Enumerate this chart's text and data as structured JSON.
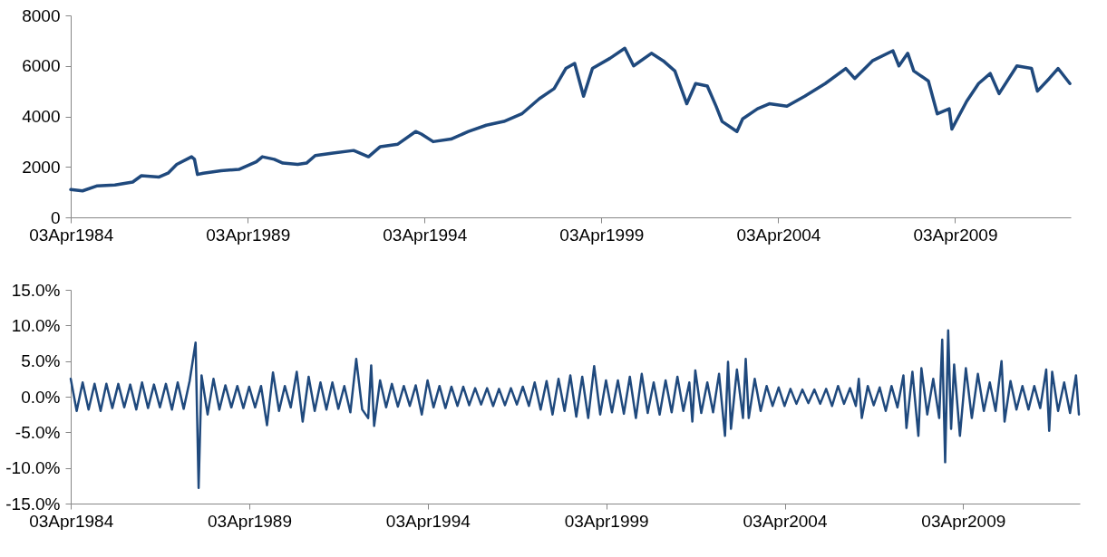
{
  "chart_data": [
    {
      "type": "line",
      "color": "#1f497d",
      "grid": false,
      "x": [
        "1984-04",
        "1984-08",
        "1985-01",
        "1985-07",
        "1986-01",
        "1986-04",
        "1986-10",
        "1987-01",
        "1987-04",
        "1987-09",
        "1987-10",
        "1987-11",
        "1988-01",
        "1988-07",
        "1989-01",
        "1989-07",
        "1989-09",
        "1990-01",
        "1990-04",
        "1990-09",
        "1990-12",
        "1991-03",
        "1991-09",
        "1992-04",
        "1992-09",
        "1993-01",
        "1993-07",
        "1994-01",
        "1994-03",
        "1994-07",
        "1995-01",
        "1995-07",
        "1996-01",
        "1996-07",
        "1997-01",
        "1997-07",
        "1997-12",
        "1998-04",
        "1998-07",
        "1998-10",
        "1999-01",
        "1999-07",
        "1999-12",
        "2000-03",
        "2000-09",
        "2001-01",
        "2001-05",
        "2001-09",
        "2001-12",
        "2002-04",
        "2002-07",
        "2002-09",
        "2003-02",
        "2003-04",
        "2003-09",
        "2004-01",
        "2004-07",
        "2005-01",
        "2005-08",
        "2006-03",
        "2006-06",
        "2006-12",
        "2007-07",
        "2007-09",
        "2007-12",
        "2008-02",
        "2008-07",
        "2008-10",
        "2009-02",
        "2009-03",
        "2009-08",
        "2009-12",
        "2010-04",
        "2010-07",
        "2011-01",
        "2011-06",
        "2011-08",
        "2011-12",
        "2012-03",
        "2012-07"
      ],
      "values": [
        1100,
        1050,
        1250,
        1280,
        1400,
        1650,
        1600,
        1750,
        2100,
        2400,
        2300,
        1700,
        1750,
        1850,
        1900,
        2200,
        2400,
        2300,
        2150,
        2100,
        2150,
        2450,
        2550,
        2650,
        2400,
        2800,
        2900,
        3400,
        3300,
        3000,
        3100,
        3400,
        3650,
        3800,
        4100,
        4700,
        5100,
        5900,
        6100,
        4800,
        5900,
        6300,
        6700,
        6000,
        6500,
        6200,
        5800,
        4500,
        5300,
        5200,
        4400,
        3800,
        3400,
        3900,
        4300,
        4500,
        4400,
        4800,
        5300,
        5900,
        5500,
        6200,
        6600,
        6000,
        6500,
        5800,
        5400,
        4100,
        4300,
        3500,
        4600,
        5300,
        5700,
        4900,
        6000,
        5900,
        5000,
        5500,
        5900,
        5300
      ],
      "xlim": [
        "1984-04-01",
        "2012-07-10"
      ],
      "xticks": [
        {
          "value": "1984-04-03",
          "label": "03Apr1984"
        },
        {
          "value": "1989-04-03",
          "label": "03Apr1989"
        },
        {
          "value": "1994-04-03",
          "label": "03Apr1994"
        },
        {
          "value": "1999-04-03",
          "label": "03Apr1999"
        },
        {
          "value": "2004-04-03",
          "label": "03Apr2004"
        },
        {
          "value": "2009-04-03",
          "label": "03Apr2009"
        }
      ],
      "ylim": [
        0,
        8000
      ],
      "yticks": [
        0,
        2000,
        4000,
        6000,
        8000
      ]
    },
    {
      "type": "line",
      "color": "#1f497d",
      "grid": false,
      "x": [
        "1984-04",
        "1984-06",
        "1984-08",
        "1984-10",
        "1984-12",
        "1985-02",
        "1985-04",
        "1985-06",
        "1985-08",
        "1985-10",
        "1985-12",
        "1986-02",
        "1986-04",
        "1986-06",
        "1986-08",
        "1986-10",
        "1986-12",
        "1987-02",
        "1987-04",
        "1987-06",
        "1987-08",
        "1987-10",
        "1987-11",
        "1987-12",
        "1988-02",
        "1988-04",
        "1988-06",
        "1988-08",
        "1988-10",
        "1988-12",
        "1989-02",
        "1989-04",
        "1989-06",
        "1989-08",
        "1989-10",
        "1989-12",
        "1990-02",
        "1990-04",
        "1990-06",
        "1990-08",
        "1990-10",
        "1990-12",
        "1991-02",
        "1991-04",
        "1991-06",
        "1991-08",
        "1991-10",
        "1991-12",
        "1992-02",
        "1992-04",
        "1992-06",
        "1992-08",
        "1992-09",
        "1992-10",
        "1992-12",
        "1993-02",
        "1993-04",
        "1993-06",
        "1993-08",
        "1993-10",
        "1993-12",
        "1994-02",
        "1994-04",
        "1994-06",
        "1994-08",
        "1994-10",
        "1994-12",
        "1995-02",
        "1995-04",
        "1995-06",
        "1995-08",
        "1995-10",
        "1995-12",
        "1996-02",
        "1996-04",
        "1996-06",
        "1996-08",
        "1996-10",
        "1996-12",
        "1997-02",
        "1997-04",
        "1997-06",
        "1997-08",
        "1997-10",
        "1997-12",
        "1998-02",
        "1998-04",
        "1998-06",
        "1998-08",
        "1998-10",
        "1998-12",
        "1999-02",
        "1999-04",
        "1999-06",
        "1999-08",
        "1999-10",
        "1999-12",
        "2000-02",
        "2000-04",
        "2000-06",
        "2000-08",
        "2000-10",
        "2000-12",
        "2001-02",
        "2001-04",
        "2001-06",
        "2001-08",
        "2001-09",
        "2001-10",
        "2001-12",
        "2002-02",
        "2002-04",
        "2002-06",
        "2002-08",
        "2002-09",
        "2002-10",
        "2002-12",
        "2003-02",
        "2003-03",
        "2003-04",
        "2003-06",
        "2003-08",
        "2003-10",
        "2003-12",
        "2004-02",
        "2004-04",
        "2004-06",
        "2004-08",
        "2004-10",
        "2004-12",
        "2005-02",
        "2005-04",
        "2005-06",
        "2005-08",
        "2005-10",
        "2005-12",
        "2006-02",
        "2006-04",
        "2006-05",
        "2006-06",
        "2006-08",
        "2006-10",
        "2006-12",
        "2007-02",
        "2007-04",
        "2007-06",
        "2007-08",
        "2007-09",
        "2007-11",
        "2008-01",
        "2008-02",
        "2008-04",
        "2008-06",
        "2008-08",
        "2008-09",
        "2008-10",
        "2008-11",
        "2008-12",
        "2009-01",
        "2009-03",
        "2009-05",
        "2009-07",
        "2009-09",
        "2009-11",
        "2010-01",
        "2010-03",
        "2010-05",
        "2010-06",
        "2010-08",
        "2010-10",
        "2010-12",
        "2011-02",
        "2011-04",
        "2011-06",
        "2011-08",
        "2011-09",
        "2011-10",
        "2011-12",
        "2012-02",
        "2012-04",
        "2012-06",
        "2012-07"
      ],
      "values": [
        2.5,
        -2.0,
        2.0,
        -1.8,
        1.8,
        -2.0,
        1.8,
        -1.6,
        1.8,
        -1.5,
        1.7,
        -1.8,
        2.0,
        -1.6,
        1.7,
        -1.5,
        1.8,
        -1.8,
        2.0,
        -1.7,
        2.2,
        7.6,
        -12.8,
        3.0,
        -2.5,
        2.5,
        -1.8,
        1.6,
        -1.5,
        1.5,
        -1.6,
        1.4,
        -1.5,
        1.5,
        -4.0,
        3.4,
        -2.0,
        1.5,
        -1.5,
        3.5,
        -3.5,
        2.8,
        -2.0,
        2.0,
        -1.8,
        2.0,
        -1.7,
        1.5,
        -2.2,
        5.3,
        -1.8,
        -3.0,
        4.4,
        -4.1,
        2.3,
        -1.5,
        1.8,
        -1.4,
        1.5,
        -1.3,
        1.6,
        -2.5,
        2.3,
        -1.5,
        1.5,
        -1.6,
        1.4,
        -1.3,
        1.4,
        -1.2,
        1.2,
        -1.1,
        1.2,
        -1.3,
        1.1,
        -1.2,
        1.2,
        -1.1,
        1.4,
        -1.3,
        2.0,
        -1.8,
        2.2,
        -2.5,
        2.5,
        -2.0,
        3.0,
        -2.8,
        2.8,
        -3.0,
        4.3,
        -2.5,
        2.3,
        -2.2,
        2.3,
        -2.4,
        2.8,
        -3.0,
        3.2,
        -2.3,
        2.0,
        -2.5,
        2.3,
        -2.2,
        2.8,
        -2.0,
        2.0,
        -3.5,
        3.7,
        -2.3,
        2.0,
        -2.2,
        3.2,
        -5.5,
        4.9,
        -4.5,
        3.8,
        -3.0,
        5.3,
        -3.0,
        2.5,
        -2.0,
        1.5,
        -1.3,
        1.3,
        -1.3,
        1.1,
        -1.0,
        1.0,
        -0.9,
        1.0,
        -1.0,
        1.1,
        -1.3,
        1.5,
        -1.0,
        1.2,
        -1.3,
        2.5,
        -3.0,
        1.5,
        -1.2,
        1.3,
        -2.0,
        1.5,
        -1.5,
        3.0,
        -4.4,
        3.5,
        -5.5,
        4.0,
        -2.5,
        2.5,
        -3.0,
        8.0,
        -9.2,
        9.3,
        -4.5,
        4.5,
        -5.5,
        4.0,
        -3.0,
        3.2,
        -2.0,
        2.0,
        -2.0,
        5.0,
        -3.5,
        2.2,
        -1.8,
        1.5,
        -1.8,
        1.5,
        -1.6,
        3.8,
        -4.8,
        3.5,
        -2.0,
        2.0,
        -2.3,
        3.0,
        -2.5
      ],
      "xlim": [
        "1984-04-01",
        "2012-07-10"
      ],
      "xticks": [
        {
          "value": "1984-04-03",
          "label": "03Apr1984"
        },
        {
          "value": "1989-04-03",
          "label": "03Apr1989"
        },
        {
          "value": "1994-04-03",
          "label": "03Apr1994"
        },
        {
          "value": "1999-04-03",
          "label": "03Apr1999"
        },
        {
          "value": "2004-04-03",
          "label": "03Apr2004"
        },
        {
          "value": "2009-04-03",
          "label": "03Apr2009"
        }
      ],
      "ylim": [
        -15,
        15
      ],
      "yticks": [
        {
          "value": -15,
          "label": "-15.0%"
        },
        {
          "value": -10,
          "label": "-10.0%"
        },
        {
          "value": -5,
          "label": "-5.0%"
        },
        {
          "value": 0,
          "label": "0.0%"
        },
        {
          "value": 5,
          "label": "5.0%"
        },
        {
          "value": 10,
          "label": "10.0%"
        },
        {
          "value": 15,
          "label": "15.0%"
        }
      ]
    }
  ]
}
